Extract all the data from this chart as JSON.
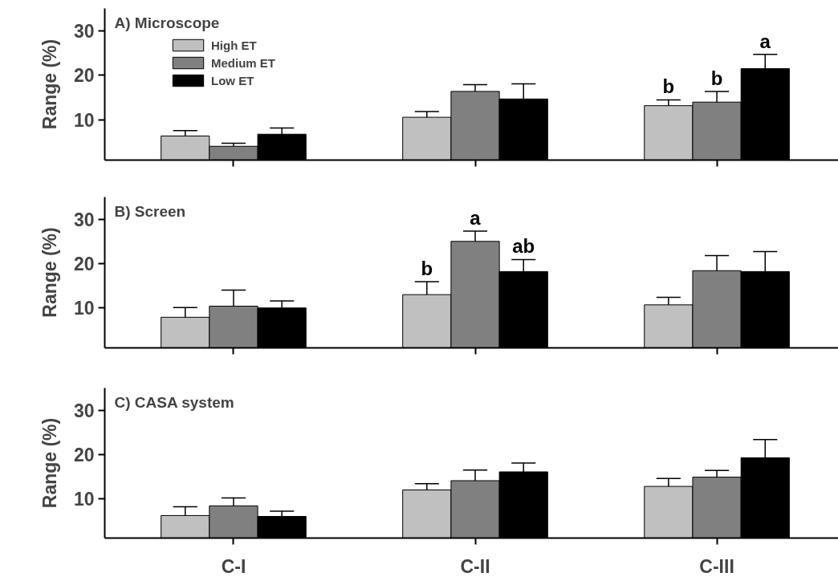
{
  "chart_data": [
    {
      "type": "bar",
      "title": "A) Microscope",
      "ylabel": "Range (%)",
      "categories": [
        "C-I",
        "C-II",
        "C-III"
      ],
      "ylim": [
        1,
        35
      ],
      "yticks": [
        10,
        20,
        30
      ],
      "grid": false,
      "legend": "top left",
      "tick_labels": "y",
      "series": [
        {
          "name": "High ET",
          "color": "#c0c0c0",
          "values": [
            6.4,
            10.6,
            13.2
          ],
          "errors": [
            [
              6.4,
              7.6
            ],
            [
              10.6,
              11.9
            ],
            [
              13.2,
              14.5
            ]
          ]
        },
        {
          "name": "Medium ET",
          "color": "#808080",
          "values": [
            4.1,
            16.4,
            14.0
          ],
          "errors": [
            [
              4.1,
              4.8
            ],
            [
              16.4,
              17.9
            ],
            [
              14.0,
              16.4
            ]
          ]
        },
        {
          "name": "Low ET",
          "color": "#000000",
          "values": [
            6.8,
            14.7,
            21.5
          ],
          "errors": [
            [
              6.8,
              8.2
            ],
            [
              14.7,
              18.1
            ],
            [
              21.5,
              24.7
            ]
          ]
        }
      ],
      "annotations": [
        {
          "text": "b",
          "x": "C-III",
          "y": 13.2
        },
        {
          "text": "b",
          "x": "C-III",
          "y": 14.0
        },
        "a"
      ]
    },
    {
      "type": "bar",
      "title": "B) Screen",
      "ylabel": "Range (%)",
      "categories": [
        "C-I",
        "C-II",
        "C-III"
      ],
      "ylim": [
        1,
        35
      ],
      "yticks": [
        10,
        20,
        30
      ],
      "grid": false,
      "tick_labels": "y",
      "series": [
        {
          "color": "#c0c0c0",
          "values": [
            7.9,
            13.0,
            10.7
          ],
          "errors": [
            [
              7.9,
              10.1
            ],
            [
              13.0,
              15.9
            ],
            [
              10.7,
              12.4
            ]
          ]
        },
        {
          "color": "#808080",
          "values": [
            10.4,
            25.0,
            18.4
          ],
          "errors": [
            [
              10.4,
              14.0
            ],
            [
              25.0,
              27.3
            ],
            [
              18.4,
              21.8
            ]
          ]
        },
        {
          "color": "#000000",
          "values": [
            10.0,
            18.2,
            18.2
          ],
          "errors": [
            [
              10.0,
              11.6
            ],
            [
              18.2,
              20.9
            ],
            [
              18.2,
              22.7
            ]
          ]
        }
      ],
      "annotations": [
        "b",
        {
          "text": "a",
          "x": "C-II",
          "y": 25.0
        },
        "ab"
      ]
    },
    {
      "type": "bar",
      "title": "C) CASA system",
      "ylabel": "Range (%)",
      "categories": [
        "C-I",
        "C-II",
        "C-III"
      ],
      "ylim": [
        1,
        35
      ],
      "yticks": [
        10,
        20,
        30
      ],
      "grid": false,
      "series": [
        {
          "color": "#c0c0c0",
          "values": [
            6.1,
            11.9,
            12.7
          ],
          "errors": [
            [
              6.1,
              8.1
            ],
            [
              11.9,
              13.3
            ],
            [
              12.7,
              14.5
            ]
          ]
        },
        {
          "color": "#808080",
          "values": [
            8.3,
            14.0,
            14.8
          ],
          "errors": [
            [
              8.3,
              10.1
            ],
            [
              14.0,
              16.4
            ],
            [
              14.8,
              16.3
            ]
          ]
        },
        {
          "color": "#000000",
          "values": [
            5.9,
            16.0,
            19.2
          ],
          "errors": [
            [
              5.9,
              7.1
            ],
            [
              16.0,
              18.0
            ],
            [
              19.2,
              23.3
            ]
          ]
        }
      ]
    }
  ]
}
